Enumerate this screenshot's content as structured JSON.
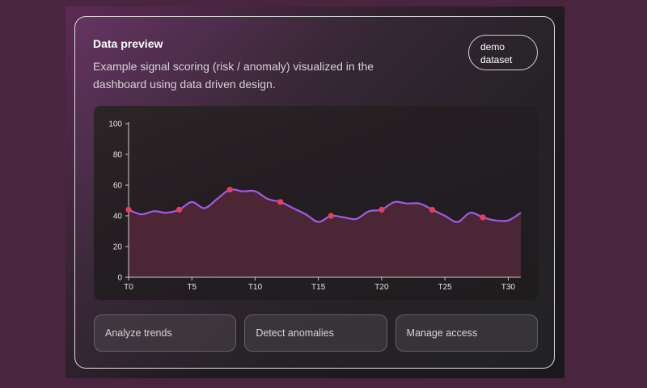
{
  "card": {
    "title": "Data preview",
    "subtitle": "Example signal scoring (risk / anomaly) visualized in the dashboard using data driven design.",
    "badge_line1": "demo",
    "badge_line2": "dataset"
  },
  "actions": [
    {
      "label": "Analyze trends"
    },
    {
      "label": "Detect anomalies"
    },
    {
      "label": "Manage access"
    }
  ],
  "colors": {
    "line": "#a259e8",
    "marker": "#e8405a",
    "area": "#5a2a3c"
  },
  "chart_data": {
    "type": "area",
    "x": [
      0,
      1,
      2,
      3,
      4,
      5,
      6,
      7,
      8,
      9,
      10,
      11,
      12,
      13,
      14,
      15,
      16,
      17,
      18,
      19,
      20,
      21,
      22,
      23,
      24,
      25,
      26,
      27,
      28,
      29,
      30,
      31
    ],
    "xticks": [
      "T0",
      "T5",
      "T10",
      "T15",
      "T20",
      "T25",
      "T30"
    ],
    "xtick_positions": [
      0,
      5,
      10,
      15,
      20,
      25,
      30
    ],
    "series": [
      {
        "values": [
          44,
          41,
          43,
          42,
          44,
          49,
          45,
          51,
          57,
          56,
          56,
          51,
          49,
          45,
          41,
          36,
          40,
          39,
          38,
          43,
          44,
          49,
          48,
          48,
          44,
          40,
          36,
          42,
          39,
          37,
          37,
          42
        ],
        "markers": [
          0,
          4,
          8,
          12,
          16,
          20,
          24,
          28
        ]
      }
    ],
    "ylim": [
      0,
      100
    ],
    "yticks": [
      0,
      20,
      40,
      60,
      80,
      100
    ],
    "grid": false
  }
}
